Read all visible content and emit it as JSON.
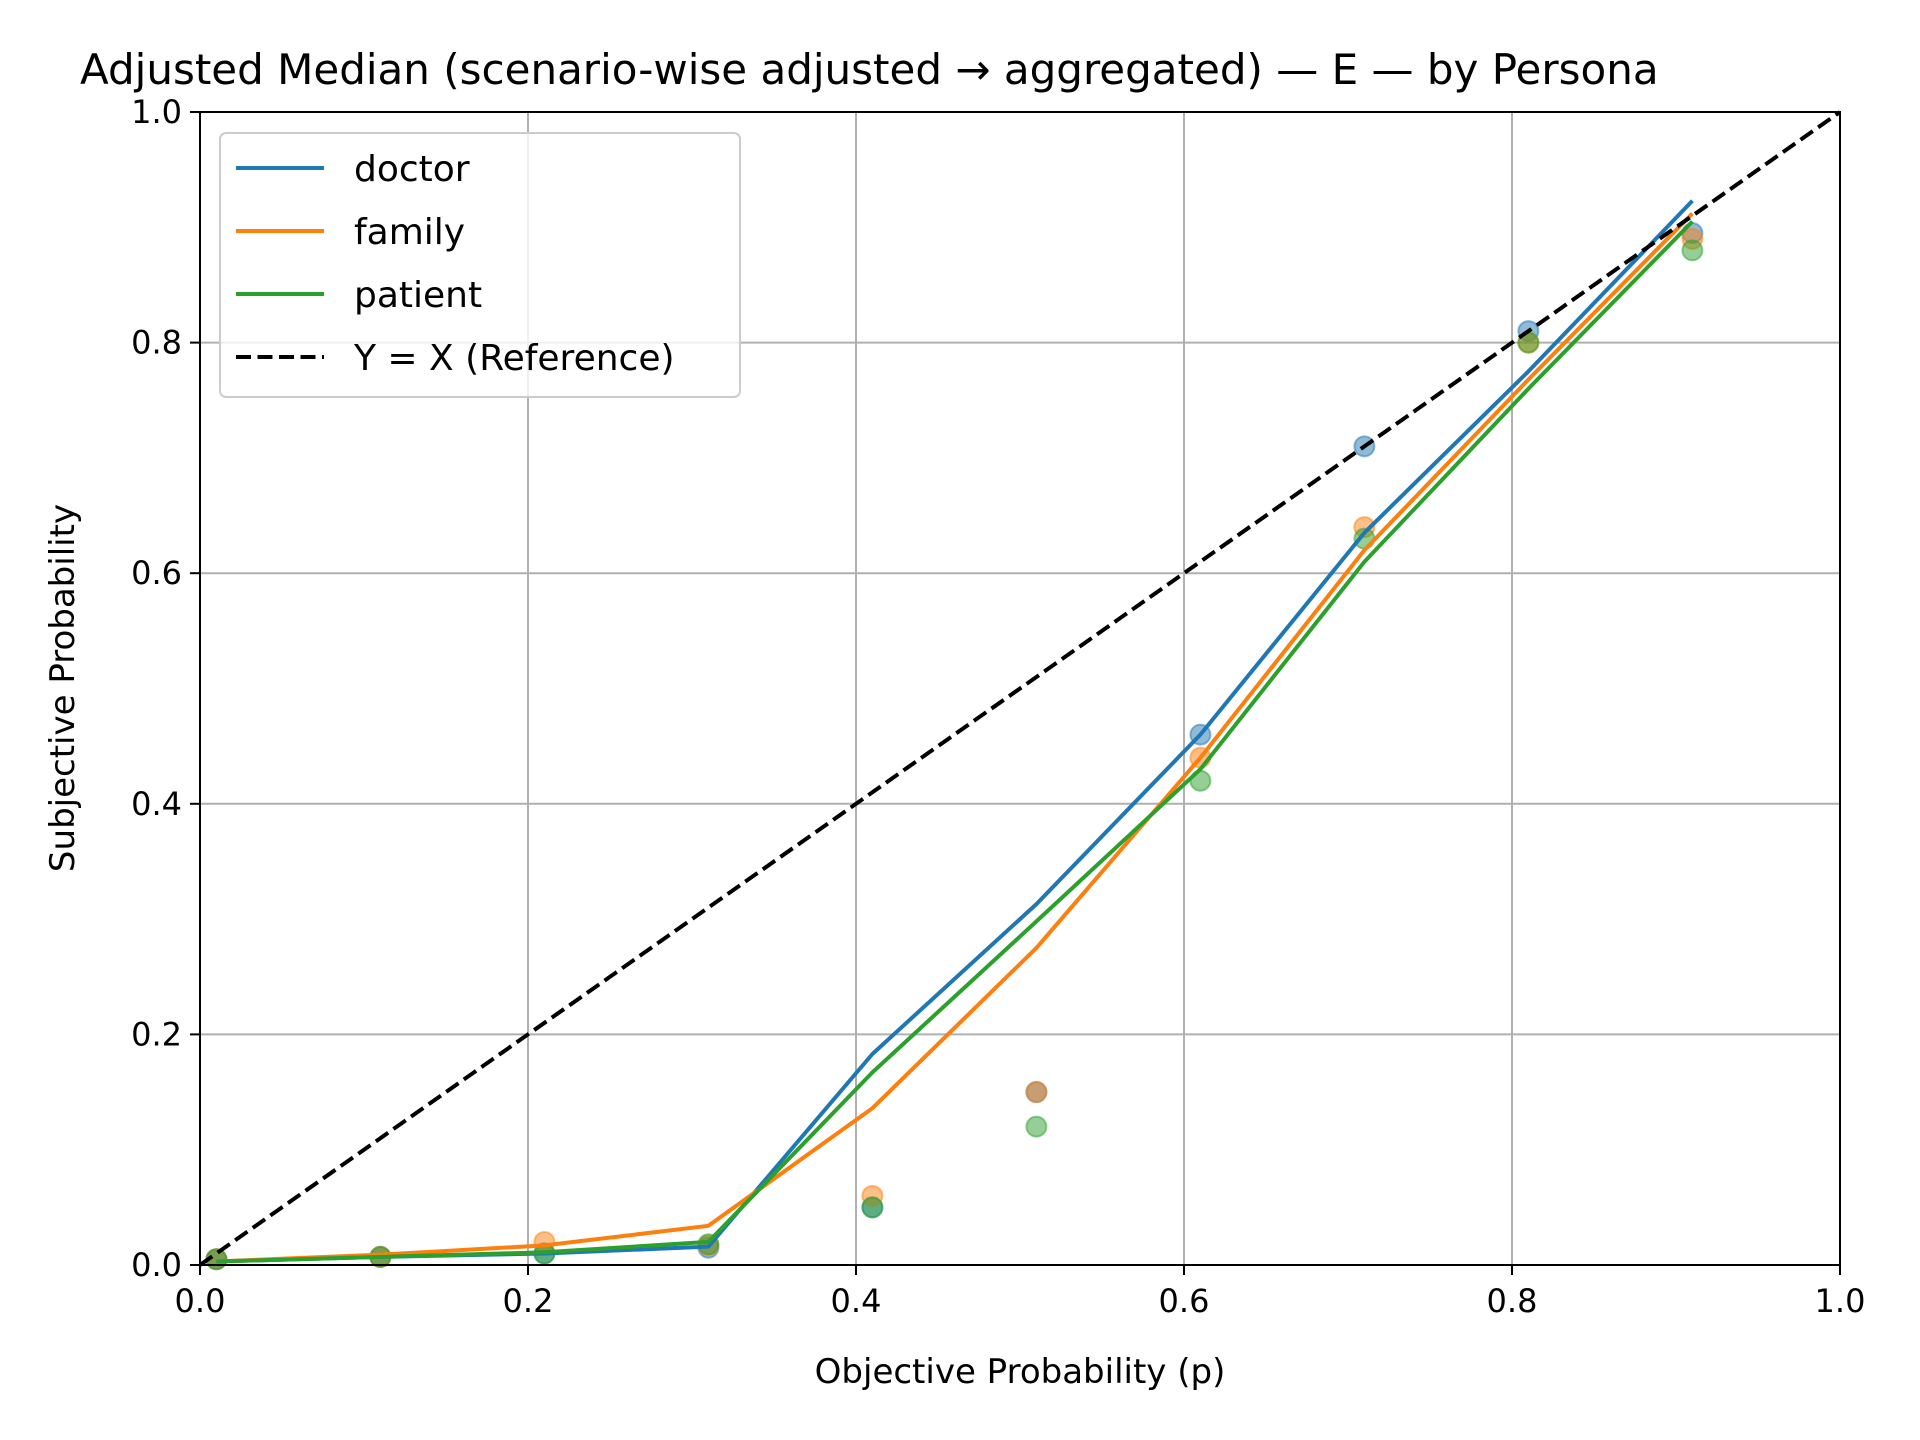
{
  "chart_data": {
    "type": "line",
    "title": "Adjusted Median (scenario-wise adjusted → aggregated) — E — by Persona",
    "xlabel": "Objective Probability (p)",
    "ylabel": "Subjective Probability",
    "xlim": [
      0.0,
      1.0
    ],
    "ylim": [
      0.0,
      1.0
    ],
    "xticks": [
      "0.0",
      "0.2",
      "0.4",
      "0.6",
      "0.8",
      "1.0"
    ],
    "yticks": [
      "0.0",
      "0.2",
      "0.4",
      "0.6",
      "0.8",
      "1.0"
    ],
    "grid": true,
    "legend_position": "upper-left",
    "series": [
      {
        "name": "doctor",
        "color": "#1f77b4",
        "line": {
          "x": [
            0.01,
            0.11,
            0.21,
            0.31,
            0.41,
            0.51,
            0.61,
            0.71,
            0.81,
            0.91
          ],
          "y": [
            0.003,
            0.007,
            0.01,
            0.016,
            0.183,
            0.313,
            0.46,
            0.635,
            0.775,
            0.923
          ]
        },
        "points": {
          "x": [
            0.01,
            0.11,
            0.21,
            0.31,
            0.41,
            0.51,
            0.61,
            0.71,
            0.81,
            0.91
          ],
          "y": [
            0.005,
            0.007,
            0.01,
            0.015,
            0.05,
            0.15,
            0.46,
            0.71,
            0.81,
            0.895
          ]
        }
      },
      {
        "name": "family",
        "color": "#ff7f0e",
        "line": {
          "x": [
            0.01,
            0.11,
            0.21,
            0.31,
            0.41,
            0.51,
            0.61,
            0.71,
            0.81,
            0.91
          ],
          "y": [
            0.003,
            0.009,
            0.017,
            0.034,
            0.136,
            0.275,
            0.44,
            0.62,
            0.768,
            0.912
          ]
        },
        "points": {
          "x": [
            0.01,
            0.11,
            0.21,
            0.31,
            0.41,
            0.51,
            0.61,
            0.71,
            0.81,
            0.91
          ],
          "y": [
            0.005,
            0.007,
            0.02,
            0.017,
            0.06,
            0.15,
            0.44,
            0.64,
            0.8,
            0.89
          ]
        }
      },
      {
        "name": "patient",
        "color": "#2ca02c",
        "line": {
          "x": [
            0.01,
            0.11,
            0.21,
            0.31,
            0.41,
            0.51,
            0.61,
            0.71,
            0.81,
            0.91
          ],
          "y": [
            0.003,
            0.007,
            0.011,
            0.02,
            0.167,
            0.298,
            0.43,
            0.61,
            0.76,
            0.905
          ]
        },
        "points": {
          "x": [
            0.01,
            0.11,
            0.21,
            0.31,
            0.41,
            0.51,
            0.61,
            0.71,
            0.81,
            0.91
          ],
          "y": [
            0.005,
            0.007,
            0.01,
            0.018,
            0.05,
            0.12,
            0.42,
            0.63,
            0.8,
            0.88
          ]
        }
      }
    ],
    "reference": {
      "name": "Y = X (Reference)",
      "color": "#000000",
      "x": [
        0.0,
        1.0
      ],
      "y": [
        0.0,
        1.0
      ]
    }
  }
}
